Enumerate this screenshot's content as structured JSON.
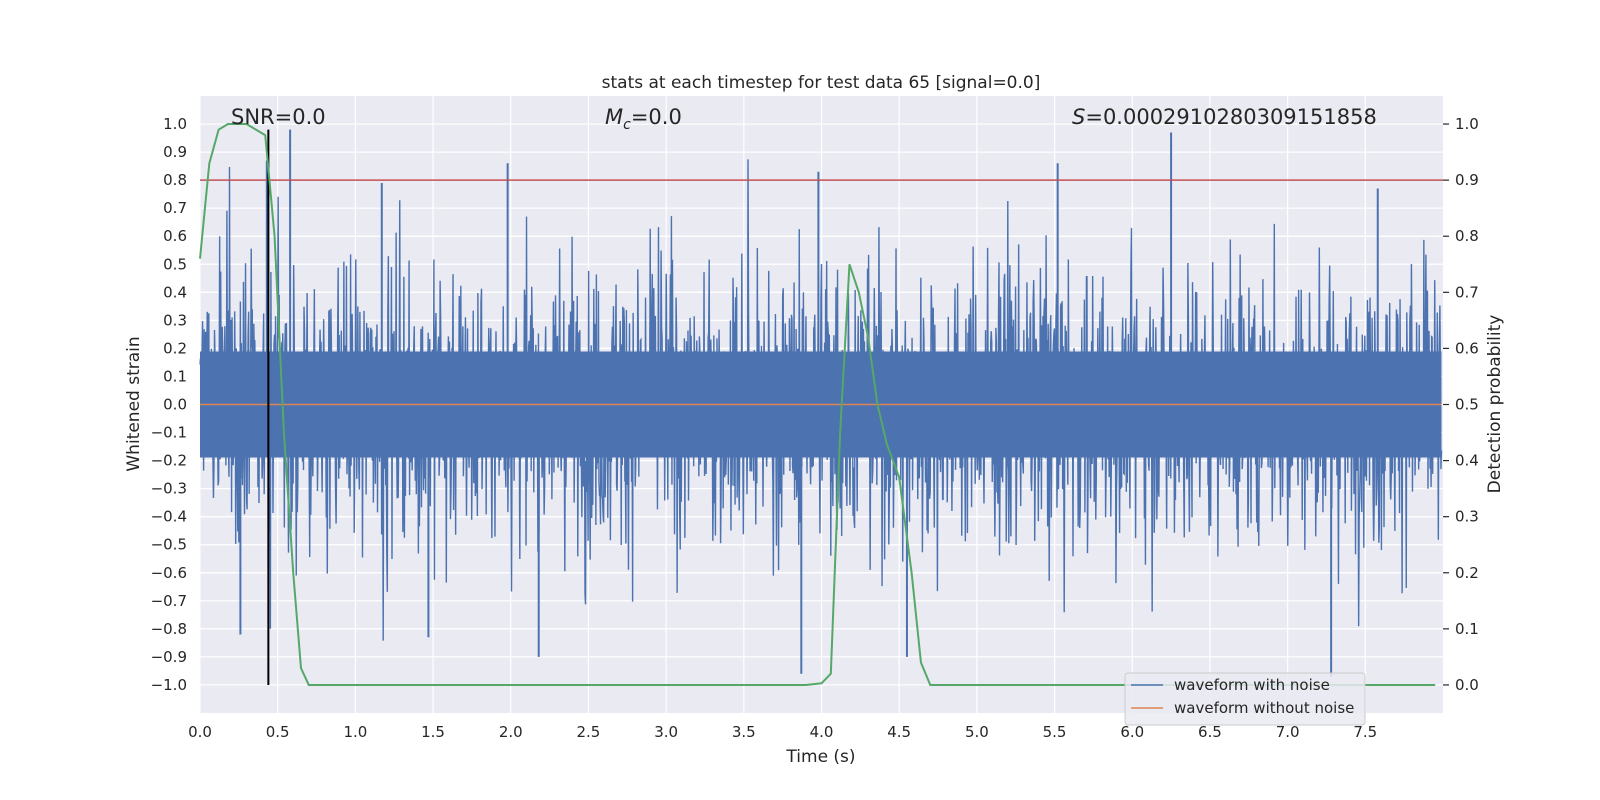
{
  "chart_data": {
    "type": "line",
    "title": "stats at each timestep for test data 65 [signal=0.0]",
    "xlabel": "Time (s)",
    "ylabel": "Whitened strain",
    "y2label": "Detection probability",
    "xlim": [
      0.0,
      8.0
    ],
    "ylim": [
      -1.1,
      1.1
    ],
    "y2lim": [
      -0.05,
      1.05
    ],
    "xticks": [
      "0.0",
      "0.5",
      "1.0",
      "1.5",
      "2.0",
      "2.5",
      "3.0",
      "3.5",
      "4.0",
      "4.5",
      "5.0",
      "5.5",
      "6.0",
      "6.5",
      "7.0",
      "7.5"
    ],
    "yticks": [
      "1.0",
      "0.9",
      "0.8",
      "0.7",
      "0.6",
      "0.5",
      "0.4",
      "0.3",
      "0.2",
      "0.1",
      "0.0",
      "−0.1",
      "−0.2",
      "−0.3",
      "−0.4",
      "−0.5",
      "−0.6",
      "−0.7",
      "−0.8",
      "−0.9",
      "−1.0"
    ],
    "y2ticks": [
      "1.0",
      "0.9",
      "0.8",
      "0.7",
      "0.6",
      "0.5",
      "0.4",
      "0.3",
      "0.2",
      "0.1",
      "0.0"
    ],
    "grid": true,
    "legend_position": "bottom-right",
    "annotations": {
      "snr": "SNR=0.0",
      "mc_symbol": "M",
      "mc_sub": "c",
      "mc_value": "=0.0",
      "s_symbol": "S",
      "s_value": "=0.0002910280309151858"
    },
    "threshold_y2": 0.9,
    "marker_time": 0.44,
    "series": [
      {
        "name": "waveform with noise",
        "color": "#4c72b0",
        "noise_envelope": {
          "x": [
            0.0,
            7.99
          ],
          "typical_amplitude": 0.45,
          "peak_max": 0.98,
          "peak_min": -0.97
        },
        "spikes_up": [
          [
            0.43,
            0.87
          ],
          [
            0.58,
            0.98
          ],
          [
            3.98,
            0.83
          ],
          [
            5.52,
            0.86
          ],
          [
            6.25,
            0.97
          ],
          [
            1.98,
            0.86
          ],
          [
            7.58,
            0.77
          ],
          [
            1.17,
            0.79
          ]
        ],
        "spikes_down": [
          [
            3.87,
            -0.96
          ],
          [
            7.28,
            -0.97
          ],
          [
            4.55,
            -0.9
          ],
          [
            2.18,
            -0.9
          ],
          [
            1.47,
            -0.83
          ],
          [
            0.26,
            -0.82
          ]
        ]
      },
      {
        "name": "waveform without noise",
        "color": "#dd8452",
        "x": [
          0.0,
          7.99
        ],
        "y": [
          0.0,
          0.0
        ]
      },
      {
        "name": "Detection probability",
        "color": "#55a868",
        "axis": "y2",
        "x": [
          0.0,
          0.06,
          0.12,
          0.18,
          0.24,
          0.3,
          0.36,
          0.42,
          0.48,
          0.54,
          0.6,
          0.65,
          0.7,
          0.75,
          0.8,
          1.0,
          2.0,
          3.0,
          3.8,
          3.9,
          4.0,
          4.06,
          4.12,
          4.18,
          4.24,
          4.3,
          4.36,
          4.42,
          4.5,
          4.58,
          4.64,
          4.7,
          4.8,
          5.0,
          6.0,
          7.0,
          7.95
        ],
        "y": [
          0.76,
          0.93,
          0.99,
          1.0,
          1.0,
          1.0,
          0.99,
          0.98,
          0.8,
          0.45,
          0.2,
          0.03,
          0.0,
          0.0,
          0.0,
          0.0,
          0.0,
          0.0,
          0.0,
          0.0,
          0.003,
          0.02,
          0.45,
          0.75,
          0.7,
          0.62,
          0.5,
          0.43,
          0.37,
          0.2,
          0.04,
          0.0,
          0.0,
          0.0,
          0.0,
          0.0,
          0.0
        ]
      }
    ]
  }
}
